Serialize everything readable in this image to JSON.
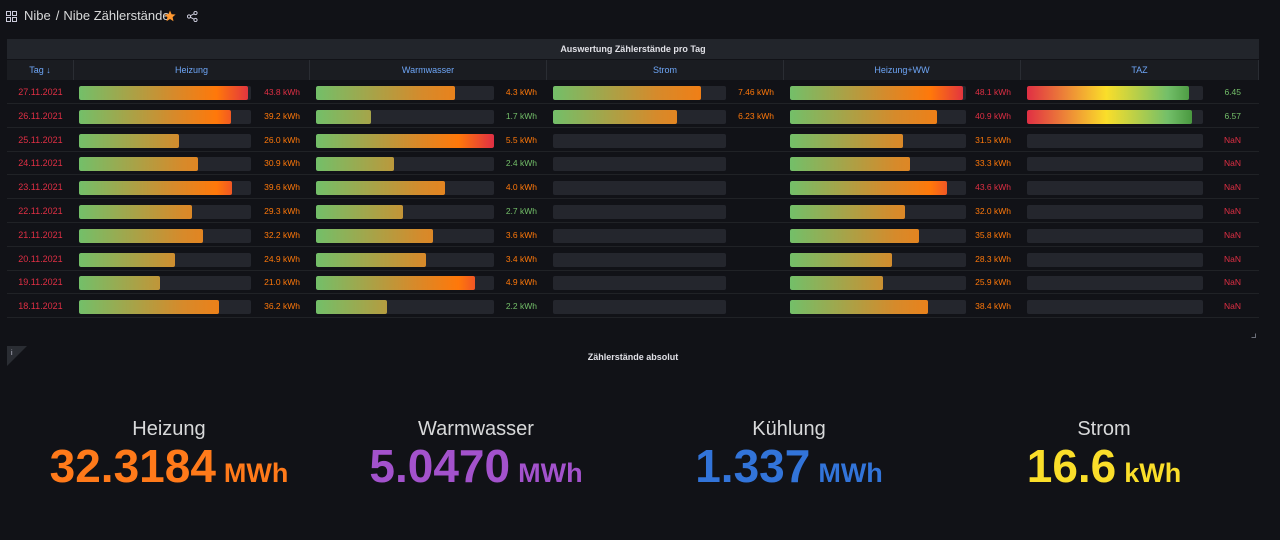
{
  "breadcrumb": {
    "folder": "Nibe",
    "separator": "/",
    "dashboard": "Nibe Zählerstände"
  },
  "table_panel": {
    "title": "Auswertung Zählerstände pro Tag",
    "columns": [
      "Tag",
      "Heizung",
      "Warmwasser",
      "Strom",
      "Heizung+WW",
      "TAZ"
    ],
    "sort_indicator": "↓",
    "rows": [
      {
        "date": "27.11.2021",
        "heizung": "43.8 kWh",
        "warmwasser": "4.3 kWh",
        "strom": "7.46 kWh",
        "heizung_ww": "48.1 kWh",
        "taz": "6.45"
      },
      {
        "date": "26.11.2021",
        "heizung": "39.2 kWh",
        "warmwasser": "1.7 kWh",
        "strom": "6.23 kWh",
        "heizung_ww": "40.9 kWh",
        "taz": "6.57"
      },
      {
        "date": "25.11.2021",
        "heizung": "26.0 kWh",
        "warmwasser": "5.5 kWh",
        "strom": "",
        "heizung_ww": "31.5 kWh",
        "taz": "NaN"
      },
      {
        "date": "24.11.2021",
        "heizung": "30.9 kWh",
        "warmwasser": "2.4 kWh",
        "strom": "",
        "heizung_ww": "33.3 kWh",
        "taz": "NaN"
      },
      {
        "date": "23.11.2021",
        "heizung": "39.6 kWh",
        "warmwasser": "4.0 kWh",
        "strom": "",
        "heizung_ww": "43.6 kWh",
        "taz": "NaN"
      },
      {
        "date": "22.11.2021",
        "heizung": "29.3 kWh",
        "warmwasser": "2.7 kWh",
        "strom": "",
        "heizung_ww": "32.0 kWh",
        "taz": "NaN"
      },
      {
        "date": "21.11.2021",
        "heizung": "32.2 kWh",
        "warmwasser": "3.6 kWh",
        "strom": "",
        "heizung_ww": "35.8 kWh",
        "taz": "NaN"
      },
      {
        "date": "20.11.2021",
        "heizung": "24.9 kWh",
        "warmwasser": "3.4 kWh",
        "strom": "",
        "heizung_ww": "28.3 kWh",
        "taz": "NaN"
      },
      {
        "date": "19.11.2021",
        "heizung": "21.0 kWh",
        "warmwasser": "4.9 kWh",
        "strom": "",
        "heizung_ww": "25.9 kWh",
        "taz": "NaN"
      },
      {
        "date": "18.11.2021",
        "heizung": "36.2 kWh",
        "warmwasser": "2.2 kWh",
        "strom": "",
        "heizung_ww": "38.4 kWh",
        "taz": "NaN"
      }
    ]
  },
  "stats_panel": {
    "title": "Zählerstände absolut",
    "stats": [
      {
        "label": "Heizung",
        "value": "32.3184",
        "unit": "MWh",
        "color": "#ff7a1a"
      },
      {
        "label": "Warmwasser",
        "value": "5.0470",
        "unit": "MWh",
        "color": "#a352cc"
      },
      {
        "label": "Kühlung",
        "value": "1.337",
        "unit": "MWh",
        "color": "#3274d9"
      },
      {
        "label": "Strom",
        "value": "16.6",
        "unit": "kWh",
        "color": "#fade2a"
      }
    ]
  },
  "colors": {
    "green": "#73bf69",
    "orange": "#ff780a",
    "red": "#e02f44",
    "yellow": "#fade2a",
    "blue_header": "#6ea6f7"
  },
  "icons": [
    "apps-icon",
    "star-icon",
    "share-icon",
    "info-icon",
    "resize-icon"
  ]
}
